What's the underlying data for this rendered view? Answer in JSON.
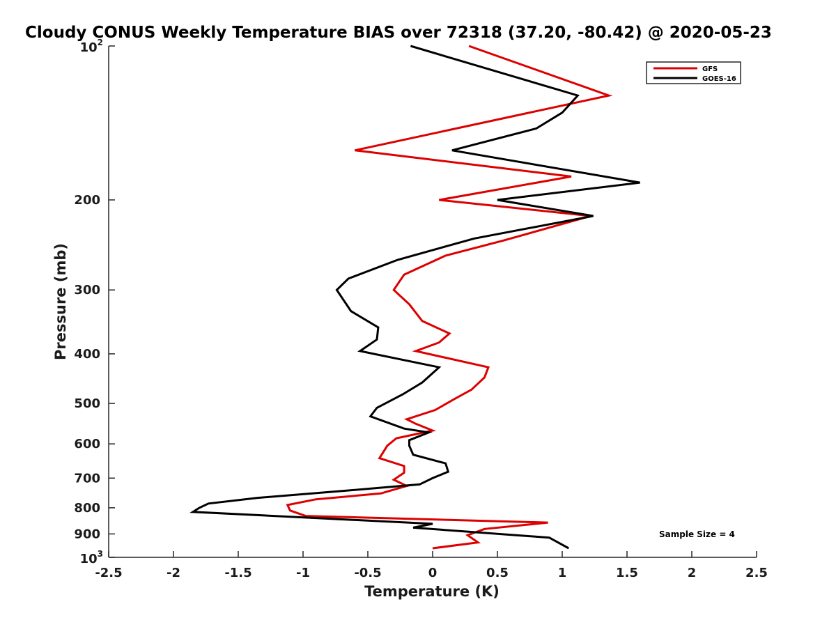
{
  "chart_data": {
    "type": "line",
    "title": "Cloudy CONUS Weekly Temperature BIAS over 72318 (37.20, -80.42) @ 2020-05-23",
    "xlabel": "Temperature (K)",
    "ylabel": "Pressure (mb)",
    "xlim": [
      -2.5,
      2.5
    ],
    "ylim": [
      100,
      1000
    ],
    "yscale": "log",
    "yreversed": true,
    "x_ticks": [
      -2.5,
      -2,
      -1.5,
      -1,
      -0.5,
      0,
      0.5,
      1,
      1.5,
      2,
      2.5
    ],
    "x_tick_labels": [
      "-2.5",
      "-2",
      "-1.5",
      "-1",
      "-0.5",
      "0",
      "0.5",
      "1",
      "1.5",
      "2",
      "2.5"
    ],
    "y_ticks": [
      {
        "value": 100,
        "base": "10",
        "exp": "2"
      },
      {
        "value": 200,
        "label": "200"
      },
      {
        "value": 300,
        "label": "300"
      },
      {
        "value": 400,
        "label": "400"
      },
      {
        "value": 500,
        "label": "500"
      },
      {
        "value": 600,
        "label": "600"
      },
      {
        "value": 700,
        "label": "700"
      },
      {
        "value": 800,
        "label": "800"
      },
      {
        "value": 900,
        "label": "900"
      },
      {
        "value": 1000,
        "base": "10",
        "exp": "3"
      }
    ],
    "legend": {
      "position": "top-right"
    },
    "annotation": "Sample Size = 4",
    "series": [
      {
        "name": "GFS",
        "color": "#dd0000",
        "points": [
          [
            0.28,
            100
          ],
          [
            1.36,
            125
          ],
          [
            -0.6,
            160
          ],
          [
            1.07,
            180
          ],
          [
            0.05,
            200
          ],
          [
            1.22,
            215
          ],
          [
            0.55,
            240
          ],
          [
            0.1,
            257
          ],
          [
            -0.22,
            280
          ],
          [
            -0.3,
            300
          ],
          [
            -0.18,
            320
          ],
          [
            -0.08,
            345
          ],
          [
            0.13,
            365
          ],
          [
            0.05,
            380
          ],
          [
            -0.13,
            395
          ],
          [
            0.43,
            425
          ],
          [
            0.4,
            445
          ],
          [
            0.3,
            470
          ],
          [
            0.17,
            490
          ],
          [
            0.02,
            515
          ],
          [
            -0.2,
            537
          ],
          [
            -0.13,
            548
          ],
          [
            0.0,
            565
          ],
          [
            -0.28,
            585
          ],
          [
            -0.35,
            605
          ],
          [
            -0.41,
            640
          ],
          [
            -0.22,
            663
          ],
          [
            -0.22,
            683
          ],
          [
            -0.3,
            705
          ],
          [
            -0.2,
            725
          ],
          [
            -0.4,
            750
          ],
          [
            -0.9,
            770
          ],
          [
            -1.12,
            790
          ],
          [
            -1.1,
            810
          ],
          [
            -0.98,
            830
          ],
          [
            0.89,
            855
          ],
          [
            0.4,
            880
          ],
          [
            0.27,
            905
          ],
          [
            0.35,
            935
          ],
          [
            0.0,
            960
          ]
        ]
      },
      {
        "name": "GOES-16",
        "color": "#000000",
        "points": [
          [
            -0.17,
            100
          ],
          [
            1.12,
            125
          ],
          [
            1.0,
            135
          ],
          [
            0.8,
            145
          ],
          [
            0.15,
            160
          ],
          [
            1.6,
            185
          ],
          [
            0.5,
            200
          ],
          [
            1.24,
            215
          ],
          [
            0.32,
            238
          ],
          [
            -0.27,
            262
          ],
          [
            -0.65,
            285
          ],
          [
            -0.74,
            300
          ],
          [
            -0.63,
            330
          ],
          [
            -0.42,
            355
          ],
          [
            -0.43,
            375
          ],
          [
            -0.56,
            395
          ],
          [
            0.05,
            425
          ],
          [
            -0.08,
            455
          ],
          [
            -0.23,
            480
          ],
          [
            -0.43,
            510
          ],
          [
            -0.48,
            530
          ],
          [
            -0.22,
            560
          ],
          [
            -0.03,
            570
          ],
          [
            -0.18,
            590
          ],
          [
            -0.18,
            605
          ],
          [
            -0.15,
            630
          ],
          [
            0.1,
            655
          ],
          [
            0.12,
            680
          ],
          [
            0.0,
            700
          ],
          [
            -0.1,
            720
          ],
          [
            -0.65,
            740
          ],
          [
            -1.35,
            765
          ],
          [
            -1.73,
            785
          ],
          [
            -1.8,
            800
          ],
          [
            -1.85,
            815
          ],
          [
            0.0,
            860
          ],
          [
            -0.15,
            875
          ],
          [
            0.9,
            915
          ],
          [
            1.05,
            960
          ]
        ]
      }
    ]
  }
}
